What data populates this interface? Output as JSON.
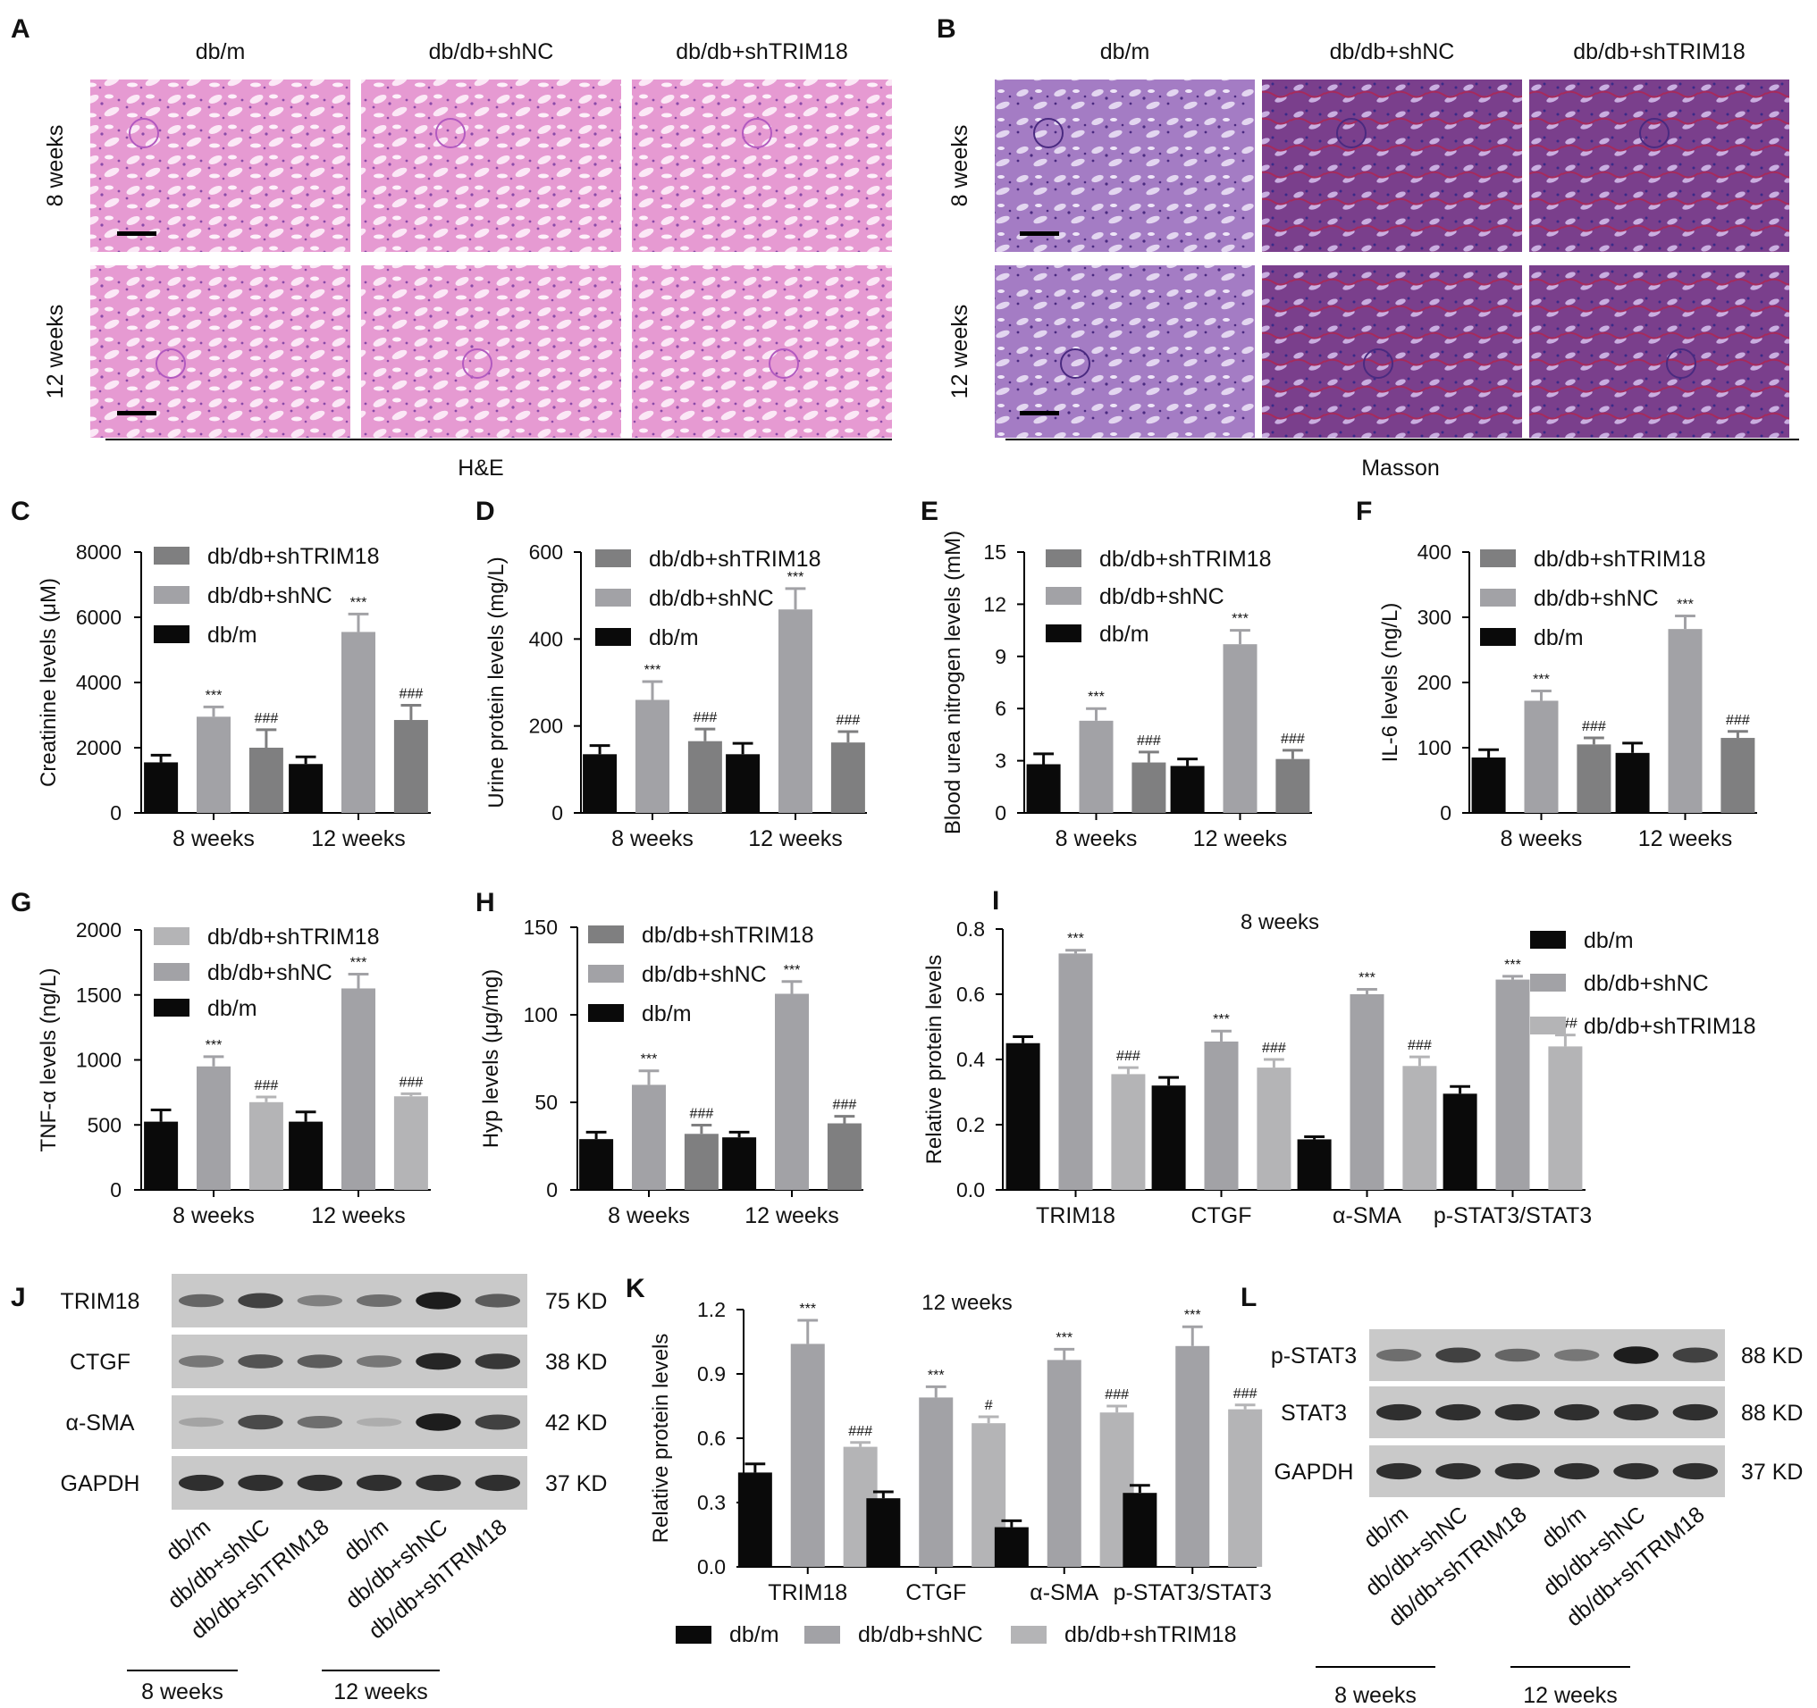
{
  "colors": {
    "dbm": "#0a0a0a",
    "shNC": "#a2a2a6",
    "shTRIM18": "#7f7f80",
    "shTRIM18_light": "#b4b4b6",
    "he_tissue": "#e69ad2",
    "masson_tissue": "#a47cc4",
    "masson_dark": "#6a3a86"
  },
  "histology": [
    {
      "letter": "A",
      "stain": "H&E",
      "columns": [
        "db/m",
        "db/db+shNC",
        "db/db+shTRIM18"
      ],
      "rows": [
        "8 weeks",
        "12 weeks"
      ]
    },
    {
      "letter": "B",
      "stain": "Masson",
      "columns": [
        "db/m",
        "db/db+shNC",
        "db/db+shTRIM18"
      ],
      "rows": [
        "8 weeks",
        "12 weeks"
      ]
    }
  ],
  "chart_data": [
    {
      "letter": "C",
      "type": "bar",
      "ylabel": "Creatinine levels (μM)",
      "ylim": [
        0,
        8000
      ],
      "ticks": [
        "0",
        "2000",
        "4000",
        "6000",
        "8000"
      ],
      "categories": [
        "8 weeks",
        "12 weeks"
      ],
      "legend": [
        "db/db+shTRIM18",
        "db/db+shNC",
        "db/m"
      ],
      "series": [
        {
          "name": "db/m",
          "values": [
            1550,
            1500
          ],
          "errors": [
            220,
            220
          ],
          "marks": [
            "",
            ""
          ]
        },
        {
          "name": "db/db+shNC",
          "values": [
            2950,
            5550
          ],
          "errors": [
            300,
            550
          ],
          "marks": [
            "***",
            "***"
          ]
        },
        {
          "name": "db/db+shTRIM18",
          "values": [
            2000,
            2850
          ],
          "errors": [
            550,
            450
          ],
          "marks": [
            "###",
            "###"
          ]
        }
      ]
    },
    {
      "letter": "D",
      "type": "bar",
      "ylabel": "Urine protein levels (mg/L)",
      "ylim": [
        0,
        600
      ],
      "ticks": [
        "0",
        "200",
        "400",
        "600"
      ],
      "categories": [
        "8 weeks",
        "12 weeks"
      ],
      "legend": [
        "db/db+shTRIM18",
        "db/db+shNC",
        "db/m"
      ],
      "series": [
        {
          "name": "db/m",
          "values": [
            135,
            135
          ],
          "errors": [
            20,
            25
          ],
          "marks": [
            "",
            ""
          ]
        },
        {
          "name": "db/db+shNC",
          "values": [
            260,
            468
          ],
          "errors": [
            42,
            48
          ],
          "marks": [
            "***",
            "***"
          ]
        },
        {
          "name": "db/db+shTRIM18",
          "values": [
            165,
            162
          ],
          "errors": [
            28,
            25
          ],
          "marks": [
            "###",
            "###"
          ]
        }
      ]
    },
    {
      "letter": "E",
      "type": "bar",
      "ylabel": "Blood urea nitrogen levels (mM)",
      "ylim": [
        0,
        15
      ],
      "ticks": [
        "0",
        "3",
        "6",
        "9",
        "12",
        "15"
      ],
      "categories": [
        "8 weeks",
        "12 weeks"
      ],
      "legend": [
        "db/db+shTRIM18",
        "db/db+shNC",
        "db/m"
      ],
      "series": [
        {
          "name": "db/m",
          "values": [
            2.8,
            2.7
          ],
          "errors": [
            0.6,
            0.4
          ],
          "marks": [
            "",
            ""
          ]
        },
        {
          "name": "db/db+shNC",
          "values": [
            5.3,
            9.7
          ],
          "errors": [
            0.7,
            0.8
          ],
          "marks": [
            "***",
            "***"
          ]
        },
        {
          "name": "db/db+shTRIM18",
          "values": [
            2.9,
            3.1
          ],
          "errors": [
            0.6,
            0.5
          ],
          "marks": [
            "###",
            "###"
          ]
        }
      ]
    },
    {
      "letter": "F",
      "type": "bar",
      "ylabel": "IL-6 levels (ng/L)",
      "ylim": [
        0,
        400
      ],
      "ticks": [
        "0",
        "100",
        "200",
        "300",
        "400"
      ],
      "categories": [
        "8 weeks",
        "12 weeks"
      ],
      "legend": [
        "db/db+shTRIM18",
        "db/db+shNC",
        "db/m"
      ],
      "series": [
        {
          "name": "db/m",
          "values": [
            85,
            92
          ],
          "errors": [
            12,
            15
          ],
          "marks": [
            "",
            ""
          ]
        },
        {
          "name": "db/db+shNC",
          "values": [
            172,
            282
          ],
          "errors": [
            15,
            20
          ],
          "marks": [
            "***",
            "***"
          ]
        },
        {
          "name": "db/db+shTRIM18",
          "values": [
            105,
            115
          ],
          "errors": [
            10,
            10
          ],
          "marks": [
            "###",
            "###"
          ]
        }
      ]
    },
    {
      "letter": "G",
      "type": "bar",
      "ylabel": "TNF-α levels (ng/L)",
      "ylim": [
        0,
        2000
      ],
      "ticks": [
        "0",
        "500",
        "1000",
        "1500",
        "2000"
      ],
      "categories": [
        "8 weeks",
        "12 weeks"
      ],
      "legend": [
        "db/db+shTRIM18",
        "db/db+shNC",
        "db/m"
      ],
      "series": [
        {
          "name": "db/m",
          "values": [
            525,
            525
          ],
          "errors": [
            90,
            75
          ],
          "marks": [
            "",
            ""
          ]
        },
        {
          "name": "db/db+shNC",
          "values": [
            950,
            1550
          ],
          "errors": [
            75,
            110
          ],
          "marks": [
            "***",
            "***"
          ]
        },
        {
          "name": "db/db+shTRIM18",
          "values": [
            675,
            720
          ],
          "errors": [
            40,
            20
          ],
          "marks": [
            "###",
            "###"
          ]
        }
      ]
    },
    {
      "letter": "H",
      "type": "bar",
      "ylabel": "Hyp levels (μg/mg)",
      "ylim": [
        0,
        150
      ],
      "ticks": [
        "0",
        "50",
        "100",
        "150"
      ],
      "categories": [
        "8 weeks",
        "12 weeks"
      ],
      "legend": [
        "db/db+shTRIM18",
        "db/db+shNC",
        "db/m"
      ],
      "series": [
        {
          "name": "db/m",
          "values": [
            29,
            30
          ],
          "errors": [
            4,
            3
          ],
          "marks": [
            "",
            ""
          ]
        },
        {
          "name": "db/db+shNC",
          "values": [
            60,
            112
          ],
          "errors": [
            8,
            7
          ],
          "marks": [
            "***",
            "***"
          ]
        },
        {
          "name": "db/db+shTRIM18",
          "values": [
            32,
            38
          ],
          "errors": [
            5,
            4
          ],
          "marks": [
            "###",
            "###"
          ]
        }
      ]
    },
    {
      "letter": "I",
      "type": "bar",
      "title": "8 weeks",
      "ylabel": "Relative protein levels",
      "ylim": [
        0,
        0.8
      ],
      "ticks": [
        "0.0",
        "0.2",
        "0.4",
        "0.6",
        "0.8"
      ],
      "categories": [
        "TRIM18",
        "CTGF",
        "α-SMA",
        "p-STAT3/STAT3"
      ],
      "legend": [
        "db/m",
        "db/db+shNC",
        "db/db+shTRIM18"
      ],
      "series": [
        {
          "name": "db/m",
          "values": [
            0.45,
            0.32,
            0.155,
            0.295
          ],
          "errors": [
            0.02,
            0.025,
            0.008,
            0.022
          ],
          "marks": [
            "",
            "",
            "",
            ""
          ]
        },
        {
          "name": "db/db+shNC",
          "values": [
            0.725,
            0.455,
            0.6,
            0.645
          ],
          "errors": [
            0.01,
            0.032,
            0.015,
            0.01
          ],
          "marks": [
            "***",
            "***",
            "***",
            "***"
          ]
        },
        {
          "name": "db/db+shTRIM18",
          "values": [
            0.355,
            0.375,
            0.38,
            0.44
          ],
          "errors": [
            0.02,
            0.025,
            0.028,
            0.035
          ],
          "marks": [
            "###",
            "###",
            "###",
            "###"
          ]
        }
      ]
    },
    {
      "letter": "K",
      "type": "bar",
      "title": "12 weeks",
      "ylabel": "Relative protein levels",
      "ylim": [
        0,
        1.2
      ],
      "ticks": [
        "0.0",
        "0.3",
        "0.6",
        "0.9",
        "1.2"
      ],
      "categories": [
        "TRIM18",
        "CTGF",
        "α-SMA",
        "p-STAT3/STAT3"
      ],
      "legend": [
        "db/m",
        "db/db+shNC",
        "db/db+shTRIM18"
      ],
      "series": [
        {
          "name": "db/m",
          "values": [
            0.44,
            0.32,
            0.185,
            0.345
          ],
          "errors": [
            0.04,
            0.03,
            0.03,
            0.035
          ],
          "marks": [
            "",
            "",
            "",
            ""
          ]
        },
        {
          "name": "db/db+shNC",
          "values": [
            1.04,
            0.79,
            0.965,
            1.03
          ],
          "errors": [
            0.11,
            0.05,
            0.05,
            0.09
          ],
          "marks": [
            "***",
            "***",
            "***",
            "***"
          ]
        },
        {
          "name": "db/db+shTRIM18",
          "values": [
            0.56,
            0.67,
            0.72,
            0.735
          ],
          "errors": [
            0.02,
            0.03,
            0.03,
            0.02
          ],
          "marks": [
            "###",
            "#",
            "###",
            "###"
          ]
        }
      ]
    }
  ],
  "blots": [
    {
      "letter": "J",
      "bands": [
        {
          "protein": "TRIM18",
          "kd": "75 KD",
          "intensity": [
            0.55,
            0.75,
            0.4,
            0.5,
            0.95,
            0.6
          ]
        },
        {
          "protein": "CTGF",
          "kd": "38 KD",
          "intensity": [
            0.45,
            0.65,
            0.6,
            0.45,
            0.9,
            0.8
          ]
        },
        {
          "protein": "α-SMA",
          "kd": "42 KD",
          "intensity": [
            0.2,
            0.7,
            0.5,
            0.15,
            0.95,
            0.75
          ]
        },
        {
          "protein": "GAPDH",
          "kd": "37 KD",
          "intensity": [
            0.85,
            0.85,
            0.85,
            0.85,
            0.85,
            0.85
          ]
        }
      ],
      "lanes": [
        "db/m",
        "db/db+shNC",
        "db/db+shTRIM18",
        "db/m",
        "db/db+shNC",
        "db/db+shTRIM18"
      ],
      "groups": [
        "8 weeks",
        "12 weeks"
      ]
    },
    {
      "letter": "L",
      "bands": [
        {
          "protein": "p-STAT3",
          "kd": "88 KD",
          "intensity": [
            0.5,
            0.75,
            0.55,
            0.45,
            0.95,
            0.75
          ]
        },
        {
          "protein": "STAT3",
          "kd": "88 KD",
          "intensity": [
            0.85,
            0.85,
            0.85,
            0.85,
            0.85,
            0.85
          ]
        },
        {
          "protein": "GAPDH",
          "kd": "37 KD",
          "intensity": [
            0.85,
            0.85,
            0.85,
            0.85,
            0.85,
            0.85
          ]
        }
      ],
      "lanes": [
        "db/m",
        "db/db+shNC",
        "db/db+shTRIM18",
        "db/m",
        "db/db+shNC",
        "db/db+shTRIM18"
      ],
      "groups": [
        "8 weeks",
        "12 weeks"
      ]
    }
  ]
}
